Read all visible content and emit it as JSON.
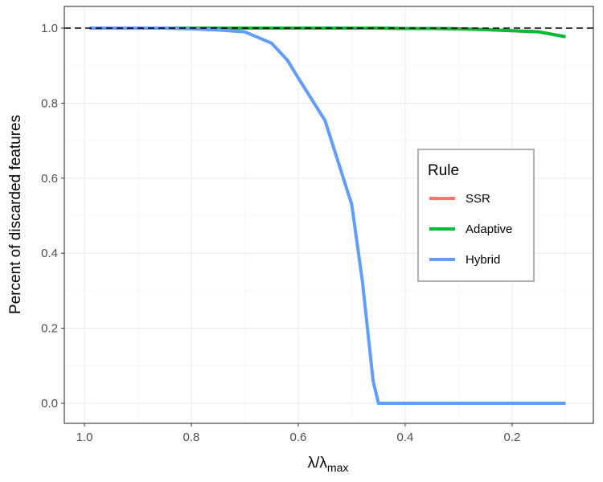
{
  "chart_data": {
    "type": "line",
    "xlabel": "λ/λ",
    "xlabel_sub": "max",
    "ylabel": "Percent of discarded features",
    "x": [
      0.99,
      0.95,
      0.9,
      0.85,
      0.8,
      0.75,
      0.7,
      0.65,
      0.62,
      0.6,
      0.55,
      0.5,
      0.48,
      0.46,
      0.45,
      0.4,
      0.35,
      0.3,
      0.25,
      0.2,
      0.15,
      0.1
    ],
    "series": [
      {
        "name": "SSR",
        "color": "#F8766D",
        "values": [
          1,
          1,
          1,
          1,
          1,
          1,
          1,
          1,
          1,
          1,
          1,
          1,
          1,
          1,
          1,
          0.999,
          0.999,
          0.998,
          0.996,
          0.993,
          0.99,
          0.977
        ]
      },
      {
        "name": "Adaptive",
        "color": "#00BA38",
        "values": [
          1,
          1,
          1,
          1,
          1,
          1,
          1,
          1,
          1,
          1,
          1,
          1,
          1,
          1,
          1,
          0.999,
          0.999,
          0.998,
          0.996,
          0.993,
          0.99,
          0.977
        ]
      },
      {
        "name": "Hybrid",
        "color": "#619CFF",
        "values": [
          1,
          1,
          1,
          1,
          0.998,
          0.995,
          0.99,
          0.96,
          0.914,
          0.867,
          0.754,
          0.53,
          0.325,
          0.06,
          0,
          0,
          0,
          0,
          0,
          0,
          0,
          0
        ]
      }
    ],
    "legend_title": "Rule",
    "hline": 1,
    "xlim": [
      1.0376,
      0.048
    ],
    "xticks": [
      {
        "value": 1,
        "label": "1.0"
      },
      0.8,
      0.6,
      0.4,
      0.2
    ],
    "ylim": [
      -0.0535,
      1.0578
    ],
    "yticks": [
      {
        "value": 0,
        "label": "0.0"
      },
      0.2,
      0.4,
      0.6,
      0.8,
      {
        "value": 1,
        "label": "1.0"
      }
    ],
    "grid": true
  }
}
